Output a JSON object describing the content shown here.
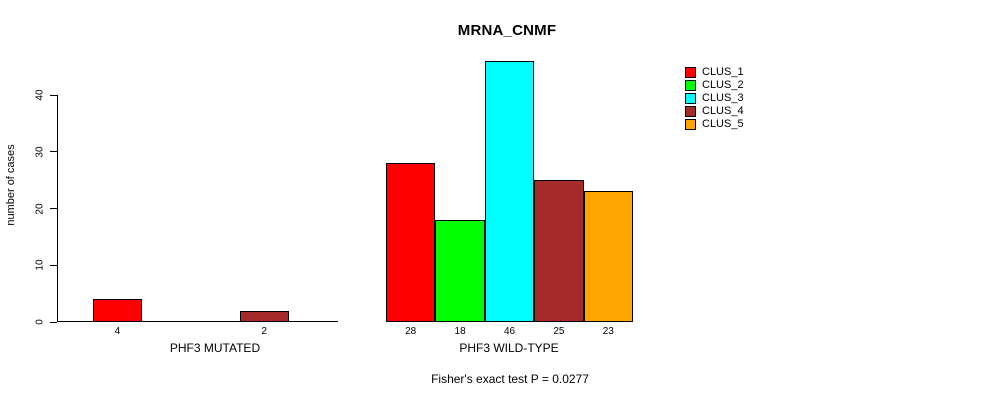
{
  "chart_data": {
    "type": "bar",
    "title": "MRNA_CNMF",
    "ylabel": "number of cases",
    "xlabel": "",
    "yticks": [
      0,
      10,
      20,
      30,
      40
    ],
    "ylim": [
      0,
      46
    ],
    "grid": false,
    "series_names": [
      "CLUS_1",
      "CLUS_2",
      "CLUS_3",
      "CLUS_4",
      "CLUS_5"
    ],
    "colors": [
      "#ff0000",
      "#00ff00",
      "#00ffff",
      "#a52a2a",
      "#ffa500"
    ],
    "groups": [
      {
        "label": "PHF3 MUTATED",
        "values": [
          4,
          0,
          0,
          2,
          0
        ]
      },
      {
        "label": "PHF3 WILD-TYPE",
        "values": [
          28,
          18,
          46,
          25,
          23
        ]
      }
    ],
    "legend": {
      "position": "right",
      "entries": [
        {
          "label": "CLUS_1",
          "color": "#ff0000"
        },
        {
          "label": "CLUS_2",
          "color": "#00ff00"
        },
        {
          "label": "CLUS_3",
          "color": "#00ffff"
        },
        {
          "label": "CLUS_4",
          "color": "#a52a2a"
        },
        {
          "label": "CLUS_5",
          "color": "#ffa500"
        }
      ]
    },
    "annotation": "Fisher's exact test P = 0.0277"
  }
}
